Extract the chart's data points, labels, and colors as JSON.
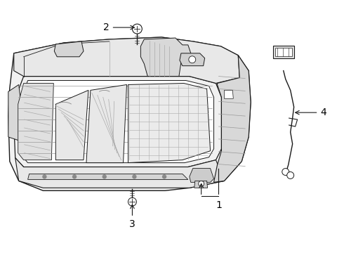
{
  "background_color": "#ffffff",
  "line_color": "#1a1a1a",
  "fig_width": 4.9,
  "fig_height": 3.6,
  "dpi": 100,
  "label_fontsize": 10
}
